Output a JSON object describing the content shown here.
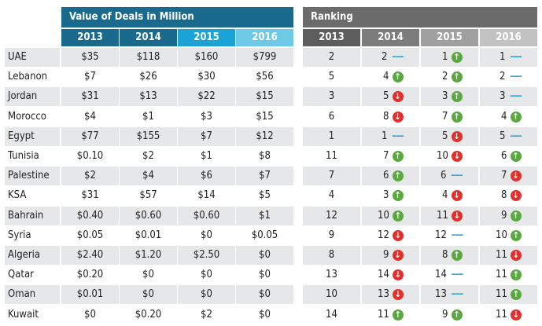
{
  "headers": {
    "deals": "Value of Deals in Million",
    "ranking": "Ranking"
  },
  "years": [
    "2013",
    "2014",
    "2015",
    "2016"
  ],
  "colors": {
    "deals_header": "#1a6a8e",
    "deal_years": [
      "#1a6a8e",
      "#1a6a8e",
      "#1aa3d4",
      "#6ec9e6"
    ],
    "ranking_header": "#6b6b6b",
    "rank_years": [
      "#5d5d5d",
      "#7c7c7c",
      "#a0a0a0",
      "#c2c2c2"
    ],
    "up": "#5aa840",
    "down": "#e2312d",
    "same": "#3aa2d8"
  },
  "rows": [
    {
      "country": "UAE",
      "values": [
        "$35",
        "$118",
        "$160",
        "$799"
      ],
      "ranks": [
        "2",
        "2",
        "same",
        "1",
        "up",
        "1",
        "same"
      ]
    },
    {
      "country": "Lebanon",
      "values": [
        "$7",
        "$26",
        "$30",
        "$56"
      ],
      "ranks": [
        "5",
        "4",
        "up",
        "2",
        "up",
        "2",
        "same"
      ]
    },
    {
      "country": "Jordan",
      "values": [
        "$31",
        "$13",
        "$22",
        "$15"
      ],
      "ranks": [
        "3",
        "5",
        "down",
        "3",
        "up",
        "3",
        "same"
      ]
    },
    {
      "country": "Morocco",
      "values": [
        "$4",
        "$1",
        "$3",
        "$15"
      ],
      "ranks": [
        "6",
        "8",
        "down",
        "7",
        "up",
        "4",
        "up"
      ]
    },
    {
      "country": "Egypt",
      "values": [
        "$77",
        "$155",
        "$7",
        "$12"
      ],
      "ranks": [
        "1",
        "1",
        "same",
        "5",
        "down",
        "5",
        "same"
      ]
    },
    {
      "country": "Tunisia",
      "values": [
        "$0.10",
        "$2",
        "$1",
        "$8"
      ],
      "ranks": [
        "11",
        "7",
        "up",
        "10",
        "down",
        "6",
        "up"
      ]
    },
    {
      "country": "Palestine",
      "values": [
        "$2",
        "$4",
        "$6",
        "$7"
      ],
      "ranks": [
        "7",
        "6",
        "up",
        "6",
        "same",
        "7",
        "down"
      ]
    },
    {
      "country": "KSA",
      "values": [
        "$31",
        "$57",
        "$14",
        "$5"
      ],
      "ranks": [
        "4",
        "3",
        "up",
        "4",
        "down",
        "8",
        "down"
      ]
    },
    {
      "country": "Bahrain",
      "values": [
        "$0.40",
        "$0.60",
        "$0.60",
        "$1"
      ],
      "ranks": [
        "12",
        "10",
        "up",
        "11",
        "down",
        "9",
        "up"
      ]
    },
    {
      "country": "Syria",
      "values": [
        "$0.05",
        "$0.01",
        "$0",
        "$0.05"
      ],
      "ranks": [
        "9",
        "12",
        "down",
        "12",
        "same",
        "10",
        "up"
      ]
    },
    {
      "country": "Algeria",
      "values": [
        "$2.40",
        "$1.20",
        "$2.50",
        "$0"
      ],
      "ranks": [
        "8",
        "9",
        "down",
        "8",
        "up",
        "11",
        "down"
      ]
    },
    {
      "country": "Qatar",
      "values": [
        "$0.20",
        "$0",
        "$0",
        "$0"
      ],
      "ranks": [
        "13",
        "14",
        "down",
        "14",
        "same",
        "11",
        "up"
      ]
    },
    {
      "country": "Oman",
      "values": [
        "$0.01",
        "$0",
        "$0",
        "$0"
      ],
      "ranks": [
        "10",
        "13",
        "down",
        "13",
        "same",
        "11",
        "up"
      ]
    },
    {
      "country": "Kuwait",
      "values": [
        "$0",
        "$0.20",
        "$2",
        "$0"
      ],
      "ranks": [
        "14",
        "11",
        "up",
        "9",
        "up",
        "11",
        "down"
      ]
    }
  ]
}
